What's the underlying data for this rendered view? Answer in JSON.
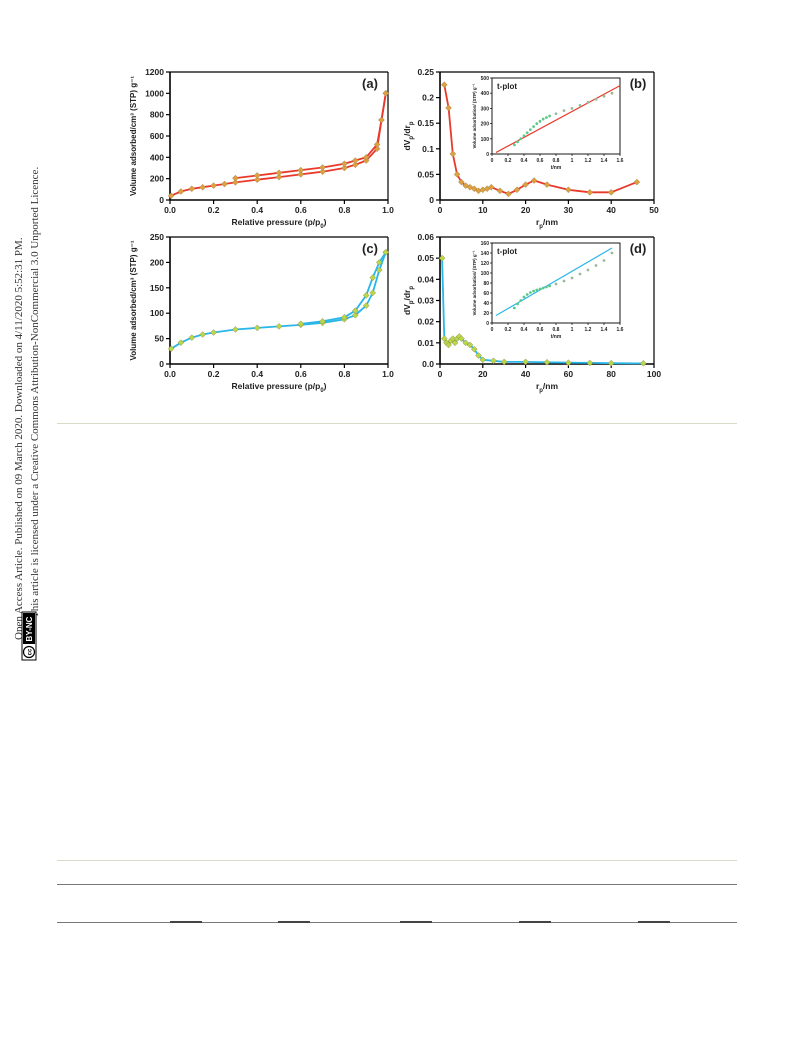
{
  "side_notice": {
    "line1": "Open Access Article. Published on 09 March 2020. Downloaded on 4/11/2020 5:52:31 PM.",
    "line2": "This article is licensed under a Creative Commons Attribution-NonCommercial 3.0 Unported Licence.",
    "cc_badge": "cc",
    "license_badge": "BY-NC"
  },
  "colors": {
    "red": "#e8392a",
    "blue": "#29b6e8",
    "orange_marker": "#e0a040",
    "green_marker": "#b8d84a",
    "scatter_green": "#5cc88a"
  },
  "chart_data": [
    {
      "panel": "(a)",
      "type": "line",
      "xlabel": "Relative pressure (p/p",
      "xlabel_sub": "0",
      "xlabel_end": ")",
      "ylabel": "Volume adsorbed/cm³ (STP) g⁻¹",
      "xlim": [
        0,
        1.0
      ],
      "ylim": [
        0,
        1200
      ],
      "xticks": [
        "0.0",
        "0.2",
        "0.4",
        "0.6",
        "0.8",
        "1.0"
      ],
      "yticks": [
        "0",
        "200",
        "400",
        "600",
        "800",
        "1000",
        "1200"
      ],
      "series": [
        {
          "x": [
            0.005,
            0.05,
            0.1,
            0.15,
            0.2,
            0.25,
            0.3,
            0.4,
            0.5,
            0.6,
            0.7,
            0.8,
            0.85,
            0.9,
            0.95,
            0.97,
            0.99
          ],
          "y": [
            40,
            80,
            105,
            120,
            135,
            150,
            165,
            190,
            215,
            240,
            265,
            300,
            330,
            370,
            480,
            750,
            1000
          ]
        },
        {
          "x": [
            0.99,
            0.97,
            0.95,
            0.9,
            0.85,
            0.8,
            0.7,
            0.6,
            0.5,
            0.4,
            0.3
          ],
          "y": [
            1000,
            750,
            520,
            400,
            370,
            340,
            305,
            280,
            255,
            230,
            205
          ]
        }
      ]
    },
    {
      "panel": "(b)",
      "type": "line",
      "xlabel": "r",
      "xlabel_sub": "p",
      "xlabel_end": "/nm",
      "ylabel": "dV",
      "ylabel_sub1": "p",
      "ylabel_mid": "/dr",
      "ylabel_sub2": "p",
      "xlim": [
        0,
        50
      ],
      "ylim": [
        0,
        0.25
      ],
      "xticks": [
        "0",
        "10",
        "20",
        "30",
        "40",
        "50"
      ],
      "yticks": [
        "0",
        "0.05",
        "0.1",
        "0.15",
        "0.2",
        "0.25"
      ],
      "series": [
        {
          "x": [
            1,
            2,
            3,
            4,
            5,
            6,
            7,
            8,
            9,
            10,
            11,
            12,
            14,
            16,
            18,
            20,
            22,
            25,
            30,
            35,
            40,
            46
          ],
          "y": [
            0.225,
            0.18,
            0.09,
            0.05,
            0.035,
            0.028,
            0.025,
            0.022,
            0.018,
            0.02,
            0.022,
            0.025,
            0.018,
            0.012,
            0.02,
            0.03,
            0.038,
            0.03,
            0.02,
            0.015,
            0.015,
            0.035
          ]
        }
      ],
      "inset": {
        "title": "t-plot",
        "xlabel": "t/nm",
        "ylabel": "Volume adsorbation/ (STP) g⁻¹",
        "xlim": [
          0,
          1.6
        ],
        "ylim": [
          0,
          500
        ],
        "xticks": [
          "0",
          "0.2",
          "0.4",
          "0.6",
          "0.8",
          "1",
          "1.2",
          "1.4",
          "1.6"
        ],
        "yticks": [
          "0",
          "100",
          "200",
          "300",
          "400",
          "500"
        ],
        "line": {
          "x": [
            0.05,
            1.6
          ],
          "y": [
            10,
            450
          ]
        },
        "scatter": {
          "x": [
            0.28,
            0.32,
            0.36,
            0.4,
            0.44,
            0.48,
            0.52,
            0.56,
            0.6,
            0.64,
            0.68,
            0.72,
            0.8,
            0.9,
            1.0,
            1.1,
            1.2,
            1.3,
            1.4,
            1.5
          ],
          "y": [
            60,
            80,
            100,
            120,
            140,
            160,
            180,
            200,
            215,
            230,
            240,
            250,
            265,
            285,
            300,
            320,
            340,
            360,
            380,
            400
          ]
        }
      }
    },
    {
      "panel": "(c)",
      "type": "line",
      "xlabel": "Relative pressure (p/p",
      "xlabel_sub": "0",
      "xlabel_end": ")",
      "ylabel": "Volume adsorbed/cm³ (STP) g⁻¹",
      "xlim": [
        0,
        1.0
      ],
      "ylim": [
        0,
        250
      ],
      "xticks": [
        "0.0",
        "0.2",
        "0.4",
        "0.6",
        "0.8",
        "1.0"
      ],
      "yticks": [
        "0",
        "50",
        "100",
        "150",
        "200",
        "250"
      ],
      "series": [
        {
          "x": [
            0.005,
            0.05,
            0.1,
            0.15,
            0.2,
            0.3,
            0.4,
            0.5,
            0.6,
            0.7,
            0.8,
            0.85,
            0.9,
            0.93,
            0.96,
            0.99
          ],
          "y": [
            30,
            42,
            52,
            58,
            62,
            68,
            71,
            74,
            77,
            81,
            88,
            96,
            115,
            140,
            185,
            220
          ]
        },
        {
          "x": [
            0.99,
            0.96,
            0.93,
            0.9,
            0.85,
            0.8,
            0.7,
            0.6
          ],
          "y": [
            220,
            200,
            170,
            135,
            105,
            92,
            84,
            79
          ]
        }
      ]
    },
    {
      "panel": "(d)",
      "type": "line",
      "xlabel": "r",
      "xlabel_sub": "p",
      "xlabel_end": "/nm",
      "ylabel": "dV",
      "ylabel_sub1": "p",
      "ylabel_mid": "/dr",
      "ylabel_sub2": "p",
      "xlim": [
        0,
        100
      ],
      "ylim": [
        0,
        0.06
      ],
      "xticks": [
        "0",
        "20",
        "40",
        "60",
        "80",
        "100"
      ],
      "yticks": [
        "0.0",
        "0.01",
        "0.02",
        "0.03",
        "0.04",
        "0.05",
        "0.06"
      ],
      "series": [
        {
          "x": [
            1,
            2,
            3,
            4,
            5,
            6,
            7,
            8,
            9,
            10,
            12,
            14,
            16,
            18,
            20,
            25,
            30,
            40,
            50,
            60,
            70,
            80,
            95
          ],
          "y": [
            0.05,
            0.012,
            0.01,
            0.009,
            0.011,
            0.012,
            0.01,
            0.012,
            0.013,
            0.012,
            0.01,
            0.009,
            0.007,
            0.004,
            0.002,
            0.0015,
            0.001,
            0.001,
            0.0008,
            0.0006,
            0.0005,
            0.0004,
            0.0003
          ]
        }
      ],
      "inset": {
        "title": "t-plot",
        "xlabel": "t/nm",
        "ylabel": "Volume adsorbation/ (STP) g⁻¹",
        "xlim": [
          0,
          1.6
        ],
        "ylim": [
          0,
          160
        ],
        "xticks": [
          "0",
          "0.2",
          "0.4",
          "0.6",
          "0.8",
          "1",
          "1.2",
          "1.4",
          "1.6"
        ],
        "yticks": [
          "0",
          "20",
          "40",
          "60",
          "80",
          "100",
          "120",
          "140",
          "160"
        ],
        "line": {
          "x": [
            0.05,
            1.5
          ],
          "y": [
            15,
            150
          ]
        },
        "scatter": {
          "x": [
            0.28,
            0.32,
            0.36,
            0.4,
            0.44,
            0.48,
            0.52,
            0.56,
            0.6,
            0.64,
            0.68,
            0.72,
            0.8,
            0.9,
            1.0,
            1.1,
            1.2,
            1.3,
            1.4,
            1.5
          ],
          "y": [
            30,
            38,
            45,
            52,
            57,
            61,
            64,
            66,
            68,
            70,
            72,
            74,
            78,
            84,
            90,
            98,
            106,
            115,
            125,
            140
          ]
        }
      }
    }
  ]
}
